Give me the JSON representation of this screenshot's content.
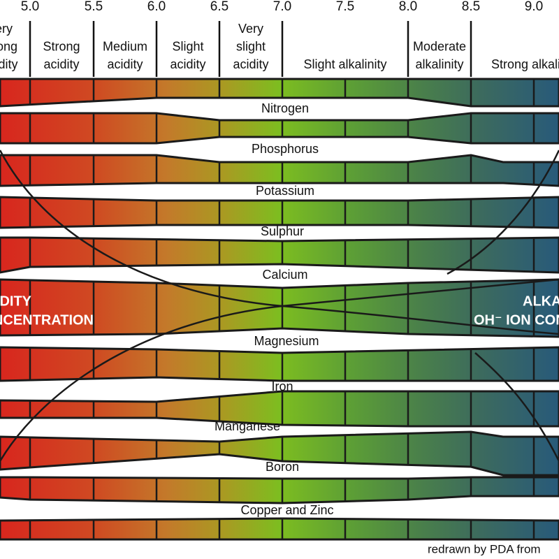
{
  "axis": {
    "ticks": [
      "5.0",
      "5.5",
      "6.0",
      "6.5",
      "7.0",
      "7.5",
      "8.0",
      "8.5",
      "9.0"
    ]
  },
  "header": [
    {
      "lines": [
        "Very",
        "strong",
        "acidity"
      ]
    },
    {
      "lines": [
        "Strong",
        "acidity"
      ]
    },
    {
      "lines": [
        "Medium",
        "acidity"
      ]
    },
    {
      "lines": [
        "Slight",
        "acidity"
      ]
    },
    {
      "lines": [
        "Very",
        "slight",
        "acidity"
      ]
    },
    {
      "lines": [
        "Slight alkalinity"
      ]
    },
    {
      "lines": [
        "Moderate",
        "alkalinity"
      ]
    },
    {
      "lines": [
        "Strong alkalinity"
      ]
    }
  ],
  "nutrients": [
    "Nitrogen",
    "Phosphorus",
    "Potassium",
    "Sulphur",
    "Calcium",
    "Magnesium",
    "Iron",
    "Manganese",
    "Boron",
    "Copper and Zinc"
  ],
  "acidity": {
    "title": "ACIDITY",
    "subtitle": "H⁺ ION CONCENTRATION"
  },
  "alkalinity": {
    "title": "ALKALINITY",
    "subtitle": "OH⁻ ION CONCENTRATION"
  },
  "footer": "redrawn by PDA from"
}
